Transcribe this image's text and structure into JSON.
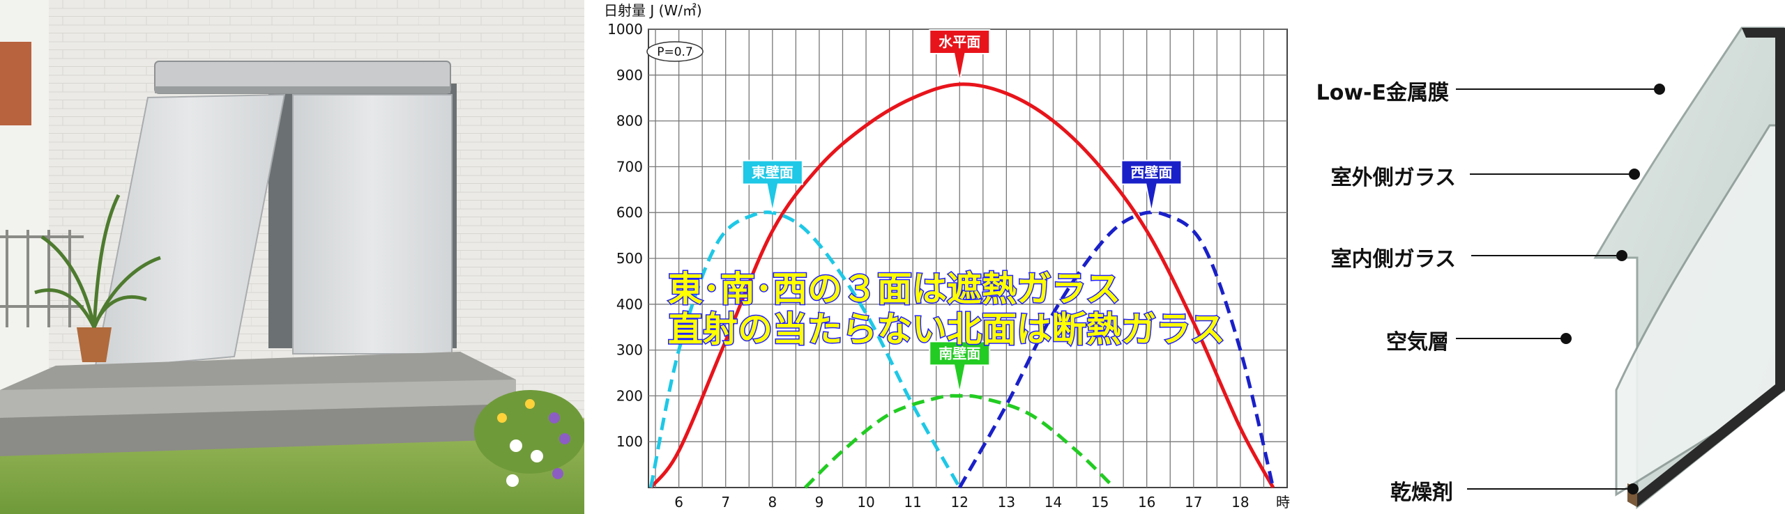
{
  "chart_data": {
    "type": "line",
    "ylabel": "日射量 J (W/㎡)",
    "xlabel_unit": "時",
    "ylim": [
      0,
      1000
    ],
    "xlim": [
      5.35,
      19.0
    ],
    "y_ticks": [
      "100",
      "200",
      "300",
      "400",
      "500",
      "600",
      "700",
      "800",
      "900",
      "1000"
    ],
    "x_ticks": [
      "6",
      "7",
      "8",
      "9",
      "10",
      "11",
      "12",
      "13",
      "14",
      "15",
      "16",
      "17",
      "18"
    ],
    "parameter_label": "P=0.7",
    "series": [
      {
        "name": "水平面",
        "color": "#e8141b",
        "style": "solid",
        "points": [
          [
            5.4,
            0
          ],
          [
            6,
            80
          ],
          [
            7,
            320
          ],
          [
            8,
            560
          ],
          [
            9,
            700
          ],
          [
            10,
            790
          ],
          [
            11,
            850
          ],
          [
            12,
            880
          ],
          [
            13,
            860
          ],
          [
            14,
            800
          ],
          [
            15,
            700
          ],
          [
            16,
            560
          ],
          [
            17,
            360
          ],
          [
            18,
            130
          ],
          [
            18.7,
            0
          ]
        ]
      },
      {
        "name": "東壁面",
        "color": "#1ec8e6",
        "style": "dashed",
        "points": [
          [
            5.4,
            0
          ],
          [
            6,
            300
          ],
          [
            6.8,
            530
          ],
          [
            7.6,
            595
          ],
          [
            8.3,
            590
          ],
          [
            9,
            530
          ],
          [
            10,
            380
          ],
          [
            11,
            180
          ],
          [
            12,
            0
          ]
        ]
      },
      {
        "name": "西壁面",
        "color": "#1a20c8",
        "style": "dashed",
        "points": [
          [
            12,
            0
          ],
          [
            13,
            180
          ],
          [
            14,
            380
          ],
          [
            15,
            530
          ],
          [
            15.7,
            590
          ],
          [
            16.4,
            595
          ],
          [
            17.2,
            530
          ],
          [
            18,
            300
          ],
          [
            18.7,
            0
          ]
        ]
      },
      {
        "name": "南壁面",
        "color": "#22cc22",
        "style": "dashed",
        "points": [
          [
            8.7,
            0
          ],
          [
            9.5,
            80
          ],
          [
            10.5,
            160
          ],
          [
            11.5,
            195
          ],
          [
            12,
            200
          ],
          [
            12.5,
            195
          ],
          [
            13.5,
            160
          ],
          [
            14.5,
            80
          ],
          [
            15.3,
            0
          ]
        ]
      }
    ],
    "callouts": [
      {
        "label": "水平面",
        "color": "#e8141b",
        "text_color": "#ffffff",
        "x": 12,
        "y": 880
      },
      {
        "label": "東壁面",
        "color": "#1ec8e6",
        "text_color": "#ffffff",
        "x": 8.0,
        "y": 595
      },
      {
        "label": "西壁面",
        "color": "#1a20c8",
        "text_color": "#ffffff",
        "x": 16.1,
        "y": 595
      },
      {
        "label": "南壁面",
        "color": "#22cc22",
        "text_color": "#ffffff",
        "x": 12,
        "y": 200
      }
    ],
    "overlay_lines": [
      "東･南･西の３面は遮熱ガラス",
      "直射の当たらない北面は断熱ガラス"
    ],
    "grid": true
  },
  "glass_diagram": {
    "labels": [
      "Low-E金属膜",
      "室外側ガラス",
      "室内側ガラス",
      "空気層",
      "乾燥剤"
    ]
  },
  "colors": {
    "wall": "#ecebe8",
    "awning_fabric": "#dcdedf",
    "overlay_text": "#ffff00",
    "overlay_outline": "#1a1aff"
  }
}
